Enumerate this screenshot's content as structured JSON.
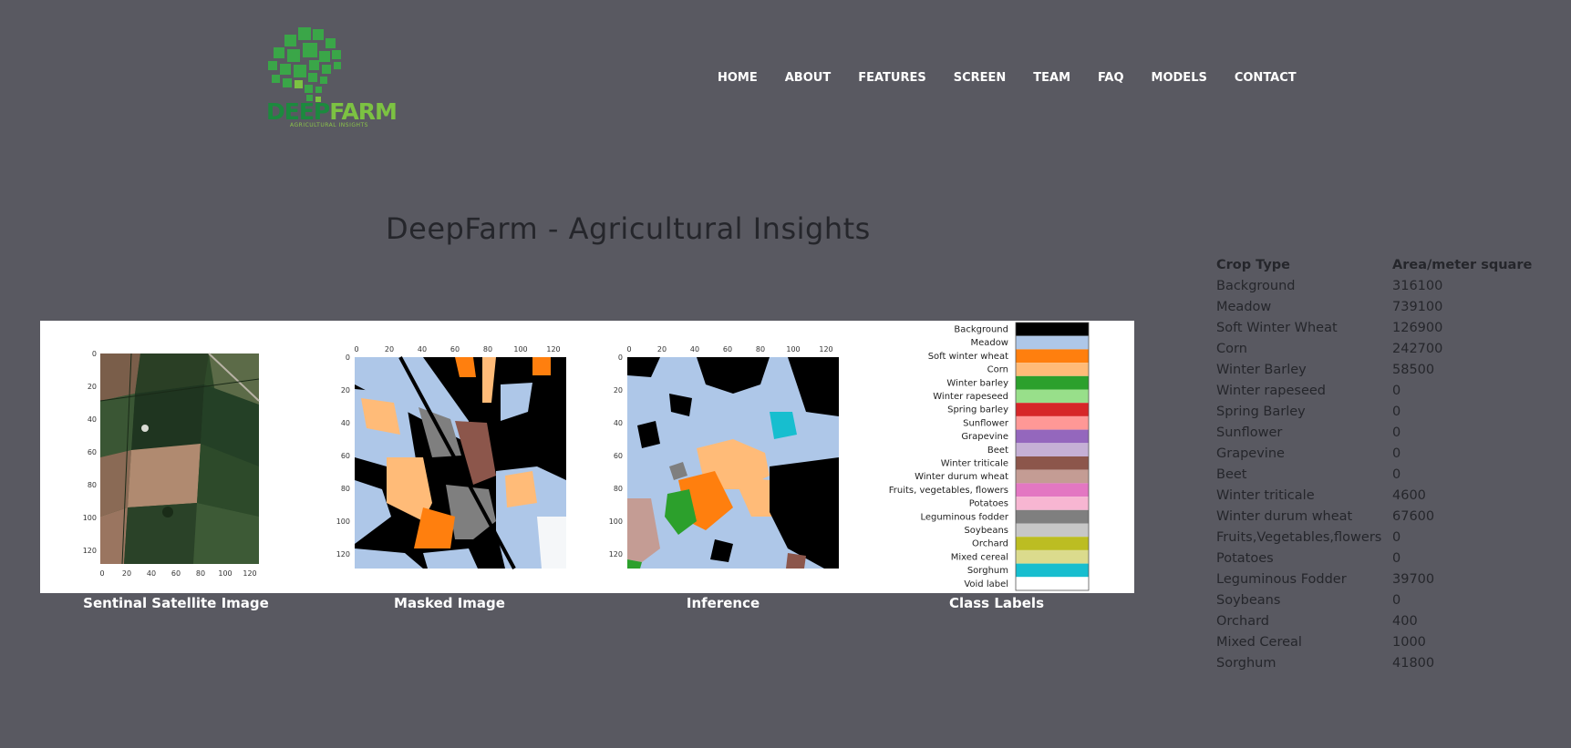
{
  "logo": {
    "name_part1": "DEEP",
    "name_part2": "FARM",
    "tagline": "AGRICULTURAL INSIGHTS"
  },
  "nav": [
    "HOME",
    "ABOUT",
    "FEATURES",
    "SCREEN",
    "TEAM",
    "FAQ",
    "MODELS",
    "CONTACT"
  ],
  "title": "DeepFarm - Agricultural Insights",
  "captions": {
    "satellite": "Sentinal Satellite Image",
    "masked": "Masked Image",
    "inference": "Inference",
    "class_labels": "Class Labels"
  },
  "axis_ticks": [
    "0",
    "20",
    "40",
    "60",
    "80",
    "100",
    "120"
  ],
  "class_labels": [
    {
      "label": "Background",
      "color": "#000000"
    },
    {
      "label": "Meadow",
      "color": "#aec7e8"
    },
    {
      "label": "Soft winter wheat",
      "color": "#ff7f0e"
    },
    {
      "label": "Corn",
      "color": "#ffbb78"
    },
    {
      "label": "Winter barley",
      "color": "#2ca02c"
    },
    {
      "label": "Winter rapeseed",
      "color": "#98df8a"
    },
    {
      "label": "Spring barley",
      "color": "#d62728"
    },
    {
      "label": "Sunflower",
      "color": "#ff9896"
    },
    {
      "label": "Grapevine",
      "color": "#9467bd"
    },
    {
      "label": "Beet",
      "color": "#c5b0d5"
    },
    {
      "label": "Winter triticale",
      "color": "#8c564b"
    },
    {
      "label": "Winter durum wheat",
      "color": "#c49c94"
    },
    {
      "label": "Fruits,  vegetables, flowers",
      "color": "#e377c2"
    },
    {
      "label": "Potatoes",
      "color": "#f7b6d2"
    },
    {
      "label": "Leguminous fodder",
      "color": "#7f7f7f"
    },
    {
      "label": "Soybeans",
      "color": "#c7c7c7"
    },
    {
      "label": "Orchard",
      "color": "#bcbd22"
    },
    {
      "label": "Mixed cereal",
      "color": "#dbdb8d"
    },
    {
      "label": "Sorghum",
      "color": "#17becf"
    },
    {
      "label": "Void label",
      "color": "#ffffff"
    }
  ],
  "table": {
    "headers": [
      "Crop Type",
      "Area/meter square"
    ],
    "rows": [
      [
        "Background",
        "316100"
      ],
      [
        "Meadow",
        "739100"
      ],
      [
        "Soft Winter Wheat",
        "126900"
      ],
      [
        "Corn",
        "242700"
      ],
      [
        "Winter Barley",
        "58500"
      ],
      [
        "Winter rapeseed",
        "0"
      ],
      [
        "Spring Barley",
        "0"
      ],
      [
        "Sunflower",
        "0"
      ],
      [
        "Grapevine",
        "0"
      ],
      [
        "Beet",
        "0"
      ],
      [
        "Winter triticale",
        "4600"
      ],
      [
        "Winter durum wheat",
        "67600"
      ],
      [
        "Fruits,Vegetables,flowers",
        "0"
      ],
      [
        "Potatoes",
        "0"
      ],
      [
        "Leguminous Fodder",
        "39700"
      ],
      [
        "Soybeans",
        "0"
      ],
      [
        "Orchard",
        "400"
      ],
      [
        "Mixed Cereal",
        "1000"
      ],
      [
        "Sorghum",
        "41800"
      ]
    ]
  },
  "colors": {
    "background": "#595961",
    "title": "#25262b",
    "logo_dark": "#1c8a3e",
    "logo_light": "#7cc242"
  }
}
